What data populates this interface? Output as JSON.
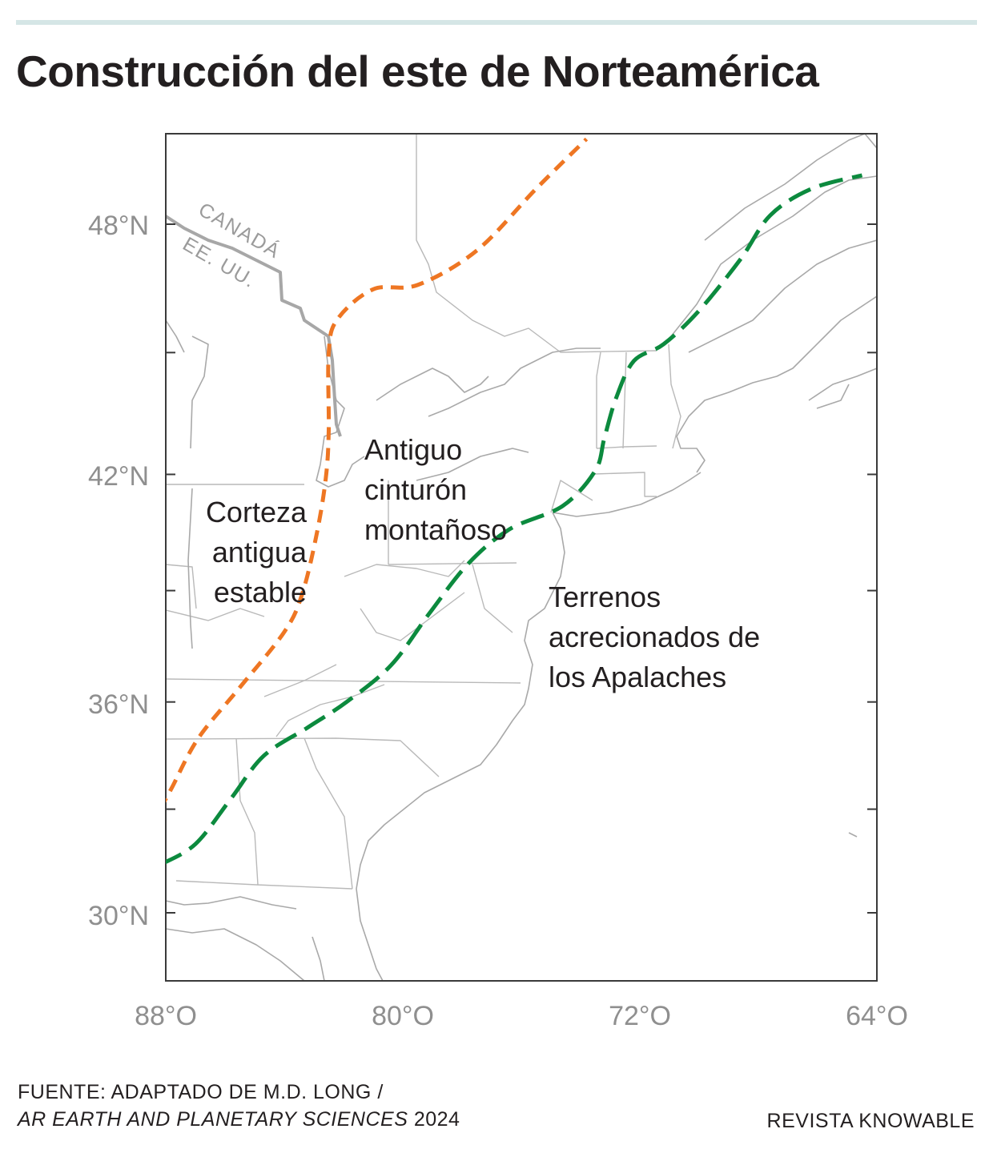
{
  "title": "Construcción del este de Norteamérica",
  "map": {
    "lat_labels": [
      "48°N",
      "42°N",
      "36°N",
      "30°N"
    ],
    "lon_labels": [
      "88°O",
      "80°O",
      "72°O",
      "64°O"
    ],
    "border_labels": {
      "north": "CANADÁ",
      "south": "EE. UU."
    },
    "regions": {
      "stable_crust": [
        "Corteza",
        "antigua",
        "estable"
      ],
      "mountain_belt": [
        "Antiguo",
        "cinturón",
        "montañoso"
      ],
      "accreted_terranes": [
        "Terrenos",
        "acrecionados de",
        "los Apalaches"
      ]
    },
    "boundary_colors": {
      "orange_dashed": "#ee7623",
      "green_dashed": "#0c8a3e"
    },
    "boundary_lines": {
      "orange_dashed": [
        [
          -88.2,
          33.0
        ],
        [
          -87.8,
          33.6
        ],
        [
          -86.9,
          35.0
        ],
        [
          -85.5,
          36.4
        ],
        [
          -84.0,
          37.9
        ],
        [
          -83.4,
          38.9
        ],
        [
          -82.9,
          40.5
        ],
        [
          -82.6,
          41.9
        ],
        [
          -82.5,
          43.1
        ],
        [
          -82.5,
          45.0
        ],
        [
          -82.2,
          45.8
        ],
        [
          -81.0,
          46.5
        ],
        [
          -79.5,
          46.6
        ],
        [
          -77.5,
          47.4
        ],
        [
          -75.5,
          48.8
        ],
        [
          -73.8,
          49.9
        ]
      ],
      "green_dashed": [
        [
          -88.2,
          31.4
        ],
        [
          -87.0,
          32.0
        ],
        [
          -85.8,
          33.3
        ],
        [
          -84.7,
          34.5
        ],
        [
          -83.2,
          35.3
        ],
        [
          -81.9,
          36.0
        ],
        [
          -80.4,
          37.0
        ],
        [
          -79.1,
          38.4
        ],
        [
          -77.8,
          39.7
        ],
        [
          -76.4,
          40.6
        ],
        [
          -74.6,
          41.2
        ],
        [
          -73.5,
          42.1
        ],
        [
          -73.2,
          42.9
        ],
        [
          -72.8,
          43.9
        ],
        [
          -72.2,
          44.8
        ],
        [
          -71.2,
          45.2
        ],
        [
          -70.0,
          46.0
        ],
        [
          -68.6,
          47.2
        ],
        [
          -67.6,
          48.2
        ],
        [
          -66.2,
          48.8
        ],
        [
          -64.5,
          49.1
        ]
      ]
    }
  },
  "footer": {
    "source_line1": "FUENTE: ADAPTADO DE M.D. LONG /",
    "source_italic": "AR EARTH AND PLANETARY SCIENCES",
    "source_year": " 2024",
    "credit": "REVISTA KNOWABLE"
  }
}
